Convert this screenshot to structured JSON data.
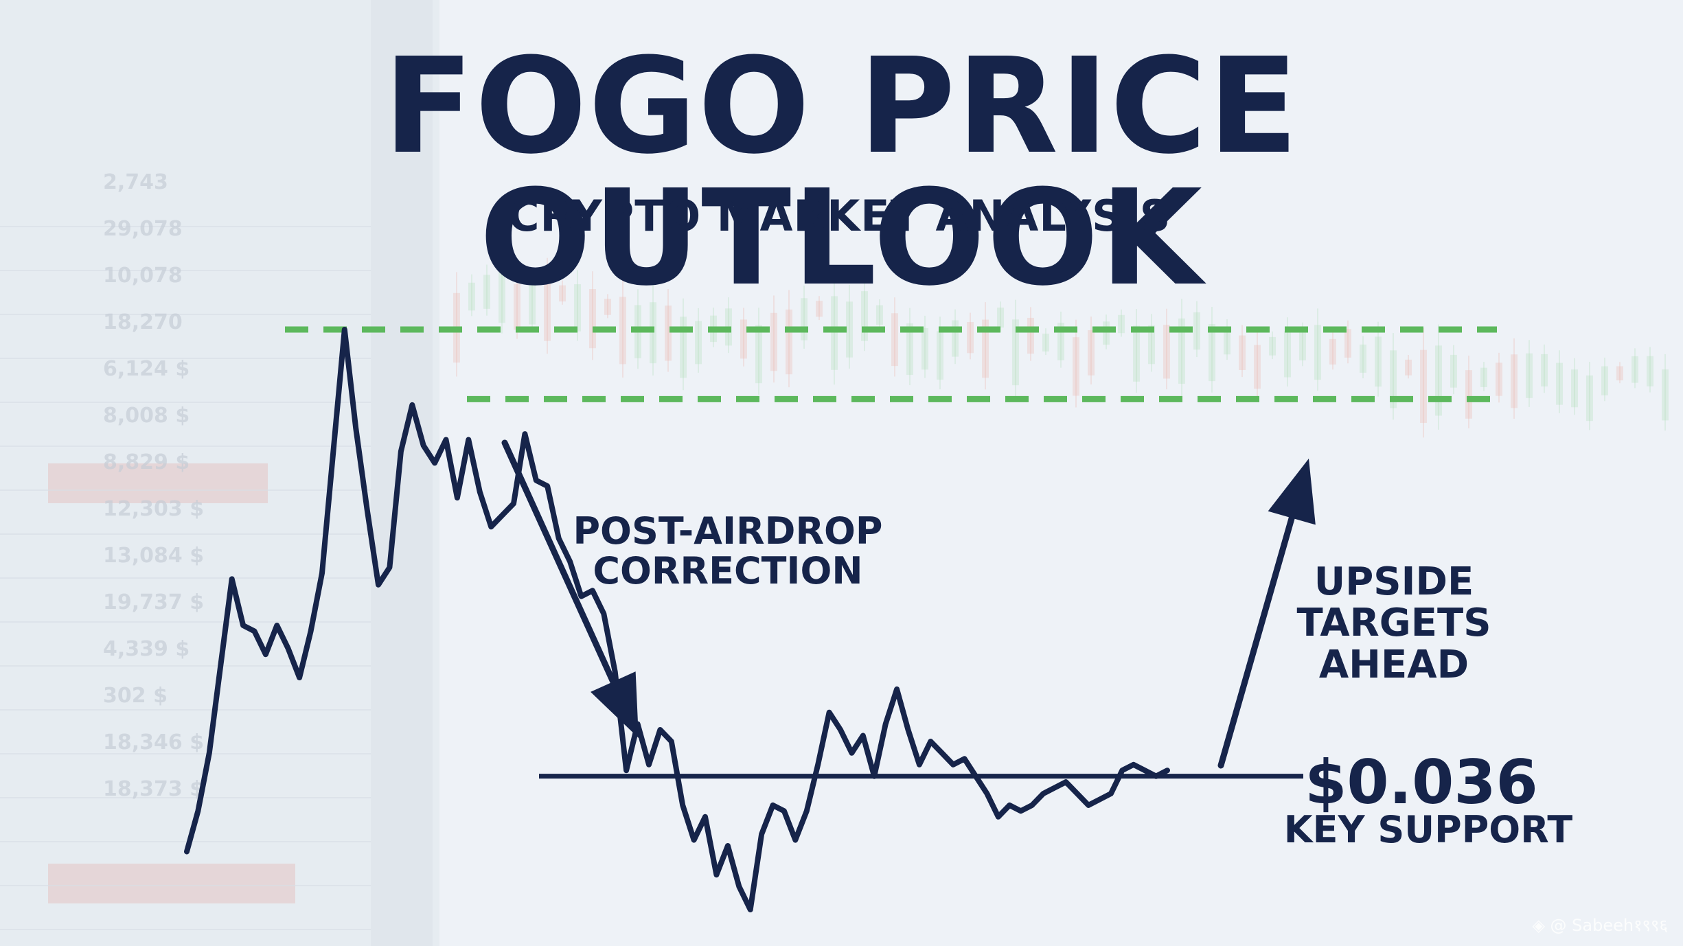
{
  "header": {
    "title": "FOGO PRICE OUTLOOK",
    "subtitle": "CRYPTO MARKET ANALYSIS"
  },
  "annotations": {
    "correction": [
      "POST-AIRDROP",
      "CORRECTION"
    ],
    "upside": [
      "UPSIDE",
      "TARGETS",
      "AHEAD"
    ],
    "support_price": "$0.036",
    "support_label": "KEY SUPPORT"
  },
  "watermark": "◈ @ Sabeeh१९९६",
  "background": {
    "ticker_values": [
      "2,743",
      "29,078",
      "10,078",
      "18,270",
      "6,124 $",
      "8,008 $",
      "8,829 $",
      "12,303 $",
      "13,084 $",
      "19,737 $",
      "4,339 $",
      "302 $",
      "18,346 $",
      "18,373 $"
    ]
  },
  "colors": {
    "text": "#16244a",
    "line": "#16244a",
    "target": "#5cb85c",
    "background": "#e9eef3"
  },
  "chart_data": {
    "type": "line",
    "title": "FOGO PRICE OUTLOOK",
    "subtitle": "CRYPTO MARKET ANALYSIS",
    "xlabel": "",
    "ylabel": "",
    "grid": false,
    "legend": "none",
    "ylim": [
      0,
      1
    ],
    "series": [
      {
        "values": [
          0.1,
          0.17,
          0.27,
          0.42,
          0.57,
          0.49,
          0.48,
          0.44,
          0.49,
          0.45,
          0.4,
          0.48,
          0.58,
          0.79,
          1.0,
          0.83,
          0.69,
          0.56,
          0.59,
          0.79,
          0.87,
          0.8,
          0.77,
          0.81,
          0.71,
          0.81,
          0.72,
          0.66,
          0.68,
          0.7,
          0.82,
          0.74,
          0.73,
          0.64,
          0.6,
          0.54,
          0.55,
          0.51,
          0.41,
          0.24,
          0.32,
          0.25,
          0.31,
          0.29,
          0.18,
          0.12,
          0.16,
          0.06,
          0.11,
          0.04,
          0.0,
          0.13,
          0.18,
          0.17,
          0.12,
          0.17,
          0.25,
          0.34,
          0.31,
          0.27,
          0.3,
          0.23,
          0.32,
          0.38,
          0.31,
          0.25,
          0.29,
          0.27,
          0.25,
          0.26,
          0.23,
          0.2,
          0.16,
          0.18,
          0.17,
          0.18,
          0.2,
          0.21,
          0.22,
          0.2,
          0.18,
          0.19,
          0.2,
          0.24,
          0.25,
          0.24,
          0.23,
          0.24
        ]
      }
    ],
    "support_level": 0.23,
    "target_levels": [
      1.0,
      0.88
    ],
    "arrows": [
      {
        "label": "POST-AIRDROP CORRECTION",
        "direction": "down"
      },
      {
        "label": "UPSIDE TARGETS AHEAD",
        "direction": "up"
      }
    ]
  }
}
